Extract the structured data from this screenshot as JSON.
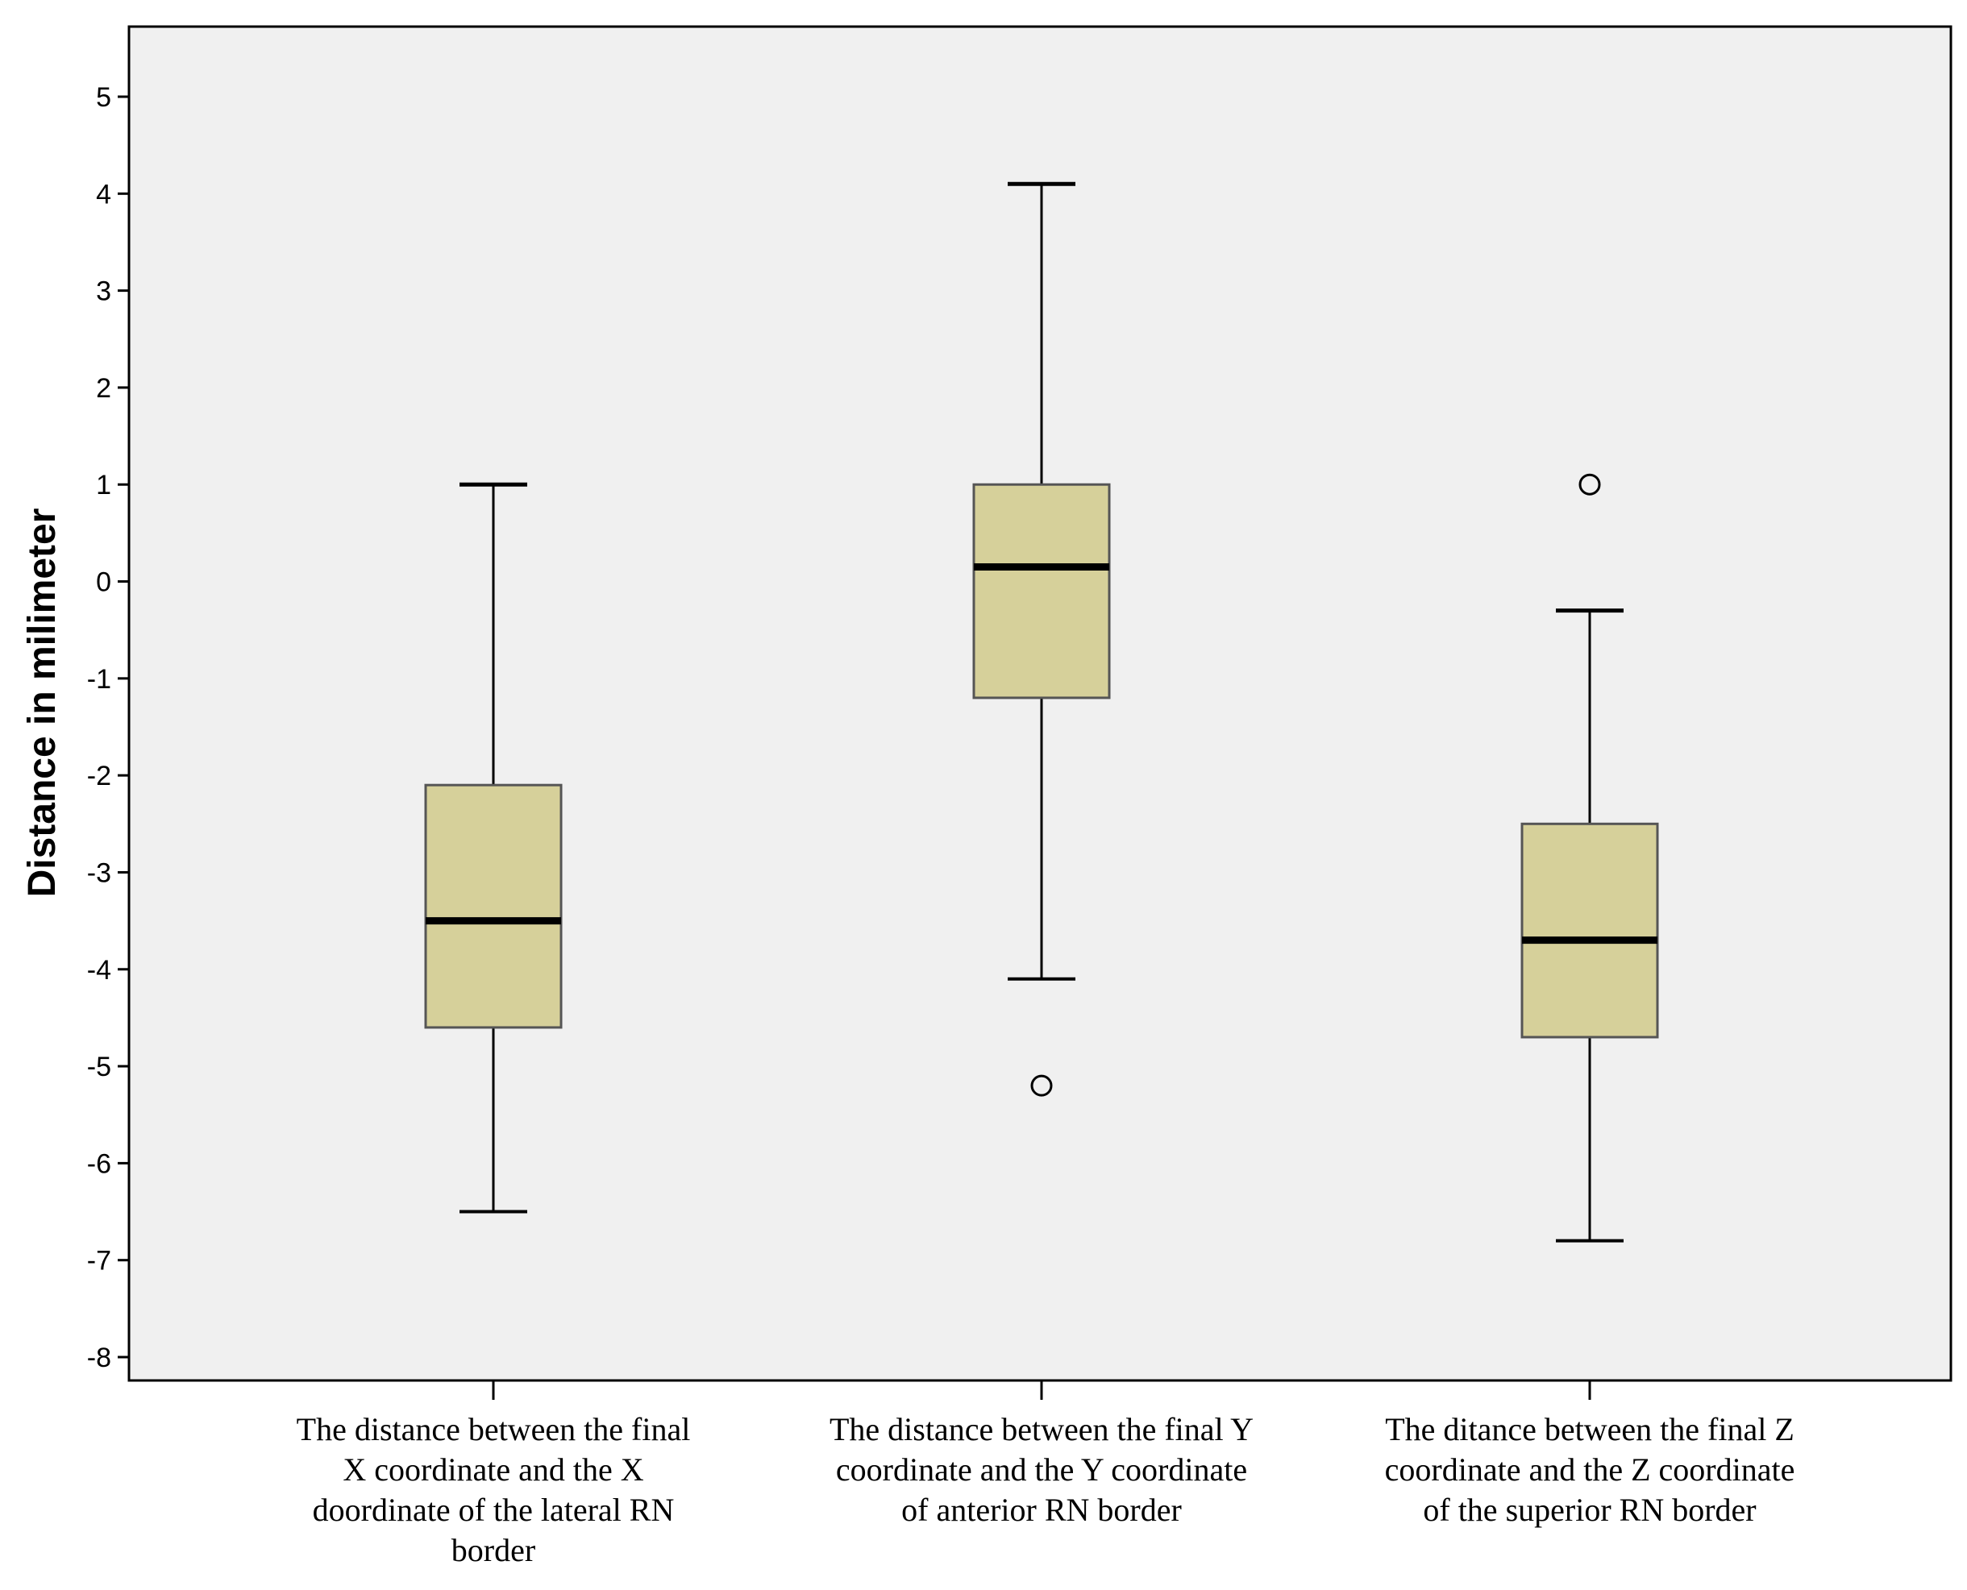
{
  "chart_data": {
    "type": "box",
    "ylabel": "Distance in milimeter",
    "ylim": [
      -8,
      5
    ],
    "yticks": [
      5,
      4,
      3,
      2,
      1,
      0,
      -1,
      -2,
      -3,
      -4,
      -5,
      -6,
      -7,
      -8
    ],
    "grid": false,
    "box_fill": "#d6d09a",
    "plot_background": "#f0f0f0",
    "categories": [
      "The distance between the final X coordinate and the X doordinate of the lateral RN border",
      "The distance between the final Y coordinate and the Y coordinate of anterior RN border",
      "The ditance between the final Z coordinate and the Z coordinate of the superior RN border"
    ],
    "category_lines": [
      [
        "The distance between the final",
        "X coordinate and the X",
        "doordinate of the lateral RN",
        "border"
      ],
      [
        "The distance between the final Y",
        "coordinate and the Y coordinate",
        "of anterior RN border"
      ],
      [
        "The ditance between the final Z",
        "coordinate and the Z coordinate",
        "of the superior RN border"
      ]
    ],
    "boxes": [
      {
        "whisker_low": -6.5,
        "q1": -4.6,
        "median": -3.5,
        "q3": -2.1,
        "whisker_high": 1.0,
        "outliers": []
      },
      {
        "whisker_low": -4.1,
        "q1": -1.2,
        "median": 0.15,
        "q3": 1.0,
        "whisker_high": 4.1,
        "outliers": [
          -5.2
        ]
      },
      {
        "whisker_low": -6.8,
        "q1": -4.7,
        "median": -3.7,
        "q3": -2.5,
        "whisker_high": -0.3,
        "outliers": [
          1.0
        ]
      }
    ]
  }
}
